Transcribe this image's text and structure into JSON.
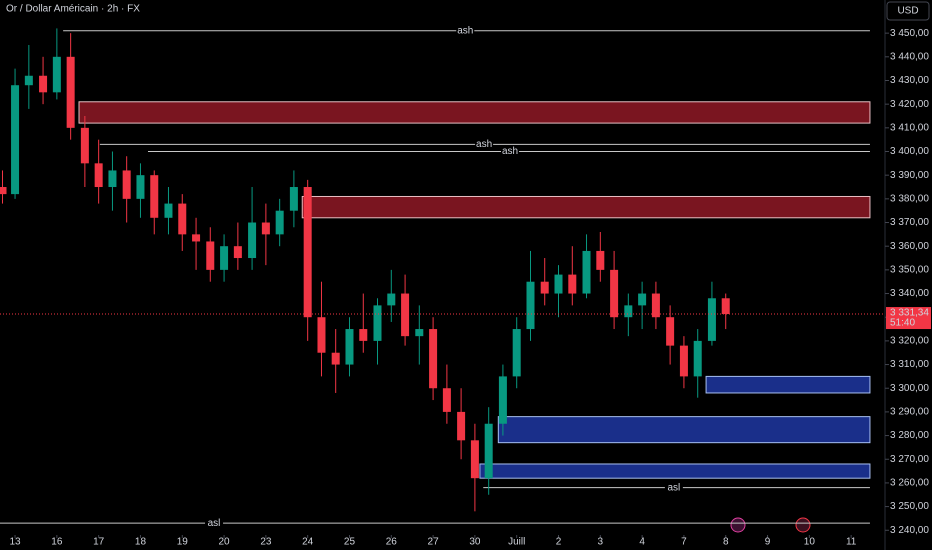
{
  "chart_data": {
    "type": "candlestick",
    "title": "Or / Dollar Américain · 2h · FX",
    "currency": "USD",
    "up_color": "#089981",
    "down_color": "#f23645",
    "xlim": [
      -0.36,
      20.81
    ],
    "ylim": [
      3238,
      3464
    ],
    "xticks": [
      {
        "value": 0,
        "label": "13"
      },
      {
        "value": 1,
        "label": "16"
      },
      {
        "value": 2,
        "label": "17"
      },
      {
        "value": 3,
        "label": "18"
      },
      {
        "value": 4,
        "label": "19"
      },
      {
        "value": 5,
        "label": "20"
      },
      {
        "value": 6,
        "label": "23"
      },
      {
        "value": 7,
        "label": "24"
      },
      {
        "value": 8,
        "label": "25"
      },
      {
        "value": 9,
        "label": "26"
      },
      {
        "value": 10,
        "label": "27"
      },
      {
        "value": 11,
        "label": "30"
      },
      {
        "value": 12,
        "label": "Juill"
      },
      {
        "value": 13,
        "label": "2"
      },
      {
        "value": 14,
        "label": "3"
      },
      {
        "value": 15,
        "label": "4"
      },
      {
        "value": 16,
        "label": "7"
      },
      {
        "value": 17,
        "label": "8"
      },
      {
        "value": 18,
        "label": "9"
      },
      {
        "value": 19,
        "label": "10"
      },
      {
        "value": 20,
        "label": "11"
      }
    ],
    "yticks": [
      {
        "value": 3240,
        "label": "3 240,00"
      },
      {
        "value": 3250,
        "label": "3 250,00"
      },
      {
        "value": 3260,
        "label": "3 260,00"
      },
      {
        "value": 3270,
        "label": "3 270,00"
      },
      {
        "value": 3280,
        "label": "3 280,00"
      },
      {
        "value": 3290,
        "label": "3 290,00"
      },
      {
        "value": 3300,
        "label": "3 300,00"
      },
      {
        "value": 3310,
        "label": "3 310,00"
      },
      {
        "value": 3320,
        "label": "3 320,00"
      },
      {
        "value": 3330,
        "label": "3 330,00"
      },
      {
        "value": 3340,
        "label": "3 340,00"
      },
      {
        "value": 3350,
        "label": "3 350,00"
      },
      {
        "value": 3360,
        "label": "3 360,00"
      },
      {
        "value": 3370,
        "label": "3 370,00"
      },
      {
        "value": 3380,
        "label": "3 380,00"
      },
      {
        "value": 3390,
        "label": "3 390,00"
      },
      {
        "value": 3400,
        "label": "3 400,00"
      },
      {
        "value": 3410,
        "label": "3 410,00"
      },
      {
        "value": 3420,
        "label": "3 420,00"
      },
      {
        "value": 3430,
        "label": "3 430,00"
      },
      {
        "value": 3440,
        "label": "3 440,00"
      },
      {
        "value": 3450,
        "label": "3 450,00"
      }
    ],
    "x": [
      -0.3,
      0,
      0.33,
      0.67,
      1,
      1.33,
      1.67,
      2,
      2.33,
      2.67,
      3,
      3.33,
      3.67,
      4,
      4.33,
      4.67,
      5,
      5.33,
      5.67,
      6,
      6.33,
      6.67,
      7,
      7.33,
      7.67,
      8,
      8.33,
      8.67,
      9,
      9.33,
      9.67,
      10,
      10.33,
      10.67,
      11,
      11.33,
      11.67,
      12,
      12.33,
      12.67,
      13,
      13.33,
      13.67,
      14,
      14.33,
      14.67,
      15,
      15.33,
      15.67,
      16,
      16.33,
      16.67,
      17
    ],
    "open": [
      3385,
      3382,
      3428,
      3432,
      3425,
      3440,
      3410,
      3395,
      3385,
      3392,
      3380,
      3390,
      3372,
      3378,
      3365,
      3362,
      3350,
      3360,
      3355,
      3370,
      3365,
      3375,
      3385,
      3330,
      3315,
      3310,
      3325,
      3320,
      3335,
      3340,
      3322,
      3325,
      3300,
      3290,
      3278,
      3262,
      3285,
      3305,
      3325,
      3345,
      3340,
      3348,
      3340,
      3358,
      3350,
      3330,
      3335,
      3340,
      3330,
      3318,
      3305,
      3320,
      3338
    ],
    "high": [
      3392,
      3435,
      3445,
      3440,
      3452,
      3450,
      3415,
      3405,
      3400,
      3398,
      3395,
      3392,
      3385,
      3382,
      3372,
      3368,
      3365,
      3370,
      3385,
      3378,
      3380,
      3392,
      3388,
      3345,
      3325,
      3330,
      3340,
      3338,
      3350,
      3348,
      3335,
      3330,
      3310,
      3300,
      3285,
      3292,
      3310,
      3330,
      3358,
      3355,
      3352,
      3360,
      3365,
      3366,
      3358,
      3340,
      3345,
      3345,
      3335,
      3322,
      3325,
      3345,
      3340
    ],
    "low": [
      3378,
      3380,
      3418,
      3420,
      3422,
      3405,
      3385,
      3378,
      3375,
      3370,
      3372,
      3365,
      3365,
      3358,
      3350,
      3345,
      3345,
      3350,
      3350,
      3352,
      3360,
      3368,
      3320,
      3305,
      3298,
      3305,
      3315,
      3310,
      3328,
      3318,
      3310,
      3295,
      3285,
      3270,
      3248,
      3255,
      3280,
      3300,
      3320,
      3335,
      3330,
      3335,
      3338,
      3345,
      3325,
      3322,
      3325,
      3325,
      3310,
      3300,
      3296,
      3318,
      3325
    ],
    "close": [
      3382,
      3428,
      3432,
      3425,
      3440,
      3410,
      3395,
      3385,
      3392,
      3380,
      3390,
      3372,
      3378,
      3365,
      3362,
      3350,
      3360,
      3355,
      3370,
      3365,
      3375,
      3385,
      3330,
      3315,
      3310,
      3325,
      3320,
      3335,
      3340,
      3322,
      3325,
      3300,
      3290,
      3278,
      3262,
      3285,
      3305,
      3325,
      3345,
      3340,
      3348,
      3340,
      3358,
      3350,
      3330,
      3335,
      3340,
      3330,
      3318,
      3305,
      3320,
      3338,
      3331.34
    ],
    "last_price": {
      "value": 3331.34,
      "label": "3 331,34",
      "countdown": "51:40"
    },
    "zones": [
      {
        "kind": "supply",
        "top": 3421,
        "bottom": 3412,
        "start": 1.53,
        "end": 20.45
      },
      {
        "kind": "supply",
        "top": 3381,
        "bottom": 3372,
        "start": 6.87,
        "end": 20.45
      },
      {
        "kind": "demand",
        "top": 3305,
        "bottom": 3298,
        "start": 16.53,
        "end": 20.45
      },
      {
        "kind": "demand",
        "top": 3288,
        "bottom": 3277,
        "start": 11.56,
        "end": 20.45
      },
      {
        "kind": "demand",
        "top": 3268,
        "bottom": 3262,
        "start": 11.12,
        "end": 20.45
      }
    ],
    "levels": [
      {
        "label": "ash",
        "value": 3451,
        "start": 1.15,
        "label_at": 10.77
      },
      {
        "label": "ash",
        "value": 3403,
        "start": 2.03,
        "label_at": 11.22
      },
      {
        "label": "ash",
        "value": 3400,
        "start": 3.18,
        "label_at": 11.84
      },
      {
        "label": "asl",
        "value": 3258,
        "start": 11.2,
        "label_at": 15.76
      },
      {
        "label": "asl",
        "value": 3243,
        "start": -0.36,
        "label_at": 4.76
      }
    ]
  }
}
